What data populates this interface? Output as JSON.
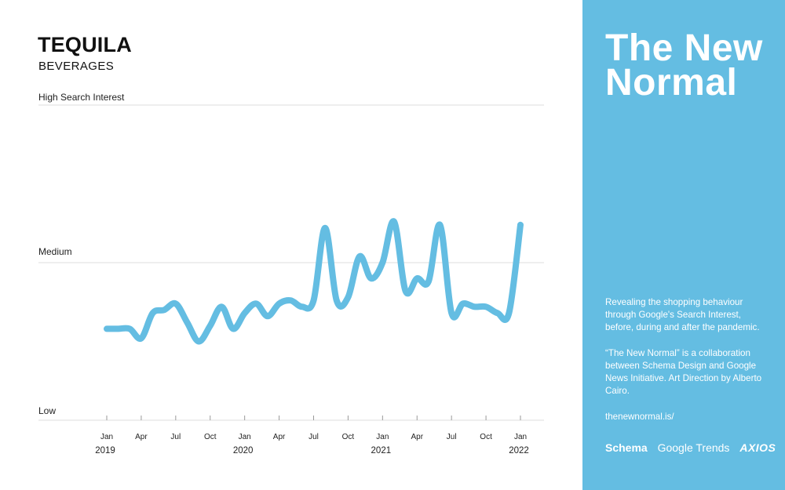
{
  "chart_data": {
    "type": "line",
    "title": "TEQUILA",
    "subtitle": "BEVERAGES",
    "ylabel_top": "High Search Interest",
    "ylabel_mid": "Medium",
    "ylabel_low": "Low",
    "ylim": [
      0,
      100
    ],
    "x": [
      0,
      1,
      2,
      3,
      4,
      5,
      6,
      7,
      8,
      9,
      10,
      11,
      12,
      13,
      14,
      15,
      16,
      17,
      18,
      19,
      20,
      21,
      22,
      23,
      24,
      25,
      26,
      27,
      28,
      29,
      30,
      31,
      32,
      33,
      34,
      35,
      36
    ],
    "series": [
      {
        "values": [
          29,
          29,
          29,
          26,
          34,
          35,
          37,
          31,
          25,
          30,
          36,
          29,
          34,
          37,
          33,
          37,
          38,
          36,
          38,
          61,
          38,
          39,
          52,
          45,
          50,
          63,
          41,
          45,
          44,
          62,
          34,
          37,
          36,
          36,
          34,
          34,
          62
        ]
      }
    ],
    "ticks": [
      {
        "label": "Jan",
        "x": 0
      },
      {
        "label": "Apr",
        "x": 3
      },
      {
        "label": "Jul",
        "x": 6
      },
      {
        "label": "Oct",
        "x": 9
      },
      {
        "label": "Jan",
        "x": 12
      },
      {
        "label": "Apr",
        "x": 15
      },
      {
        "label": "Jul",
        "x": 18
      },
      {
        "label": "Oct",
        "x": 21
      },
      {
        "label": "Jan",
        "x": 24
      },
      {
        "label": "Apr",
        "x": 27
      },
      {
        "label": "Jul",
        "x": 30
      },
      {
        "label": "Oct",
        "x": 33
      },
      {
        "label": "Jan",
        "x": 36
      }
    ],
    "years": [
      {
        "label": "2019",
        "x": 0
      },
      {
        "label": "2020",
        "x": 12
      },
      {
        "label": "2021",
        "x": 24
      },
      {
        "label": "2022",
        "x": 36
      }
    ],
    "grid": true,
    "line_color": "#64bde2"
  },
  "panel": {
    "title": "The New Normal",
    "description": "Revealing the shopping behaviour through Google's Search Interest, before, during and after the pandemic.",
    "collab": "“The New Normal” is a collaboration between Schema Design and Google News Initiative. Art Direction by Alberto Cairo.",
    "url": "thenewnormal.is/",
    "logos": [
      "Schema",
      "Google Trends",
      "AXIOS"
    ],
    "bg_color": "#64bde2"
  }
}
